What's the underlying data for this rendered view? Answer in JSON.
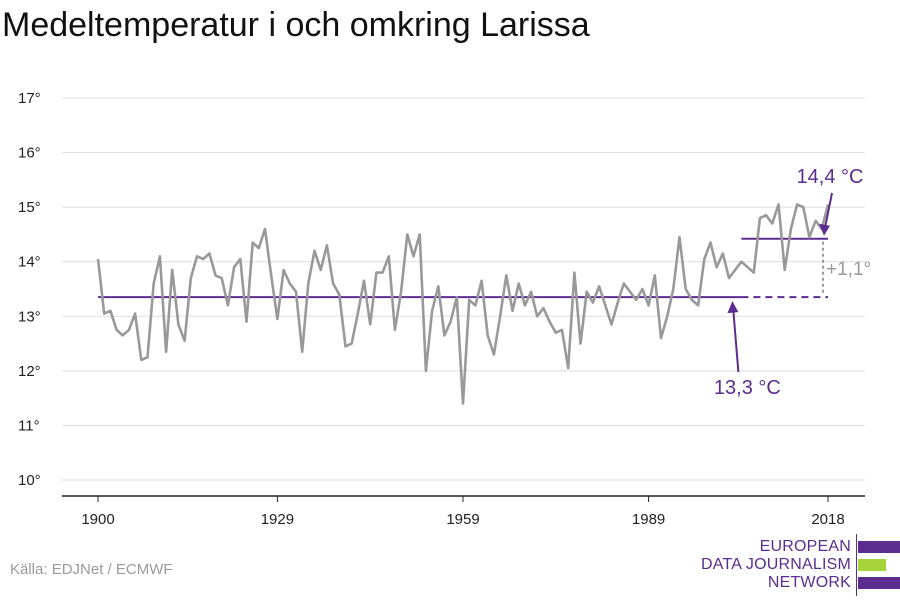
{
  "title": "Medeltemperatur i och omkring Larissa",
  "source": "Källa: EDJNet / ECMWF",
  "logo": {
    "lines": [
      "EUROPEAN",
      "DATA JOURNALISM",
      "NETWORK"
    ],
    "colors": {
      "purple": "#5b2d8e",
      "green": "#a6d33a"
    }
  },
  "colors": {
    "series": "#999999",
    "reference": "#5b2d8e",
    "annotation_purple": "#5b2d8e",
    "diff_text": "#999999",
    "grid": "#dddddd",
    "axis": "#222222"
  },
  "chart_data": {
    "type": "line",
    "title": "Medeltemperatur i och omkring Larissa",
    "xlabel": "",
    "ylabel": "",
    "xlim": [
      1900,
      2018
    ],
    "ylim": [
      10,
      17
    ],
    "grid": true,
    "x_ticks": [
      1900,
      1929,
      1959,
      1989,
      2018
    ],
    "x_tick_labels": [
      "1900",
      "1929",
      "1959",
      "1989",
      "2018"
    ],
    "y_ticks": [
      10,
      11,
      12,
      13,
      14,
      15,
      16,
      17
    ],
    "y_tick_labels": [
      "10°",
      "11°",
      "12°",
      "13°",
      "14°",
      "15°",
      "16°",
      "17°"
    ],
    "series": [
      {
        "x": [
          1900,
          1901,
          1902,
          1903,
          1904,
          1905,
          1906,
          1907,
          1908,
          1909,
          1910,
          1911,
          1912,
          1913,
          1914,
          1915,
          1916,
          1917,
          1918,
          1919,
          1920,
          1921,
          1922,
          1923,
          1924,
          1925,
          1926,
          1927,
          1928,
          1929,
          1930,
          1931,
          1932,
          1933,
          1934,
          1935,
          1936,
          1937,
          1938,
          1939,
          1940,
          1941,
          1942,
          1943,
          1944,
          1945,
          1946,
          1947,
          1948,
          1949,
          1950,
          1951,
          1952,
          1953,
          1954,
          1955,
          1956,
          1957,
          1958,
          1959,
          1960,
          1961,
          1962,
          1963,
          1964,
          1965,
          1966,
          1967,
          1968,
          1969,
          1970,
          1971,
          1972,
          1973,
          1974,
          1975,
          1976,
          1977,
          1978,
          1979,
          1980,
          1981,
          1982,
          1983,
          1984,
          1985,
          1986,
          1987,
          1988,
          1989,
          1990,
          1991,
          1992,
          1993,
          1994,
          1995,
          1996,
          1997,
          1998,
          1999,
          2000,
          2001,
          2002,
          2003,
          2004,
          2005,
          2006,
          2007,
          2008,
          2009,
          2010,
          2011,
          2012,
          2013,
          2014,
          2015,
          2016,
          2017,
          2018
        ],
        "values": [
          14.05,
          13.05,
          13.1,
          12.75,
          12.65,
          12.75,
          13.05,
          12.2,
          12.25,
          13.6,
          14.1,
          12.35,
          13.85,
          12.85,
          12.55,
          13.7,
          14.1,
          14.05,
          14.15,
          13.75,
          13.7,
          13.2,
          13.9,
          14.05,
          12.9,
          14.35,
          14.25,
          14.6,
          13.75,
          12.95,
          13.85,
          13.6,
          13.45,
          12.35,
          13.6,
          14.2,
          13.85,
          14.3,
          13.6,
          13.4,
          12.45,
          12.5,
          13.05,
          13.65,
          12.85,
          13.8,
          13.8,
          14.1,
          12.75,
          13.45,
          14.5,
          14.1,
          14.5,
          12.0,
          13.1,
          13.55,
          12.65,
          12.9,
          13.35,
          11.4,
          13.3,
          13.2,
          13.65,
          12.65,
          12.3,
          13.0,
          13.75,
          13.1,
          13.6,
          13.2,
          13.45,
          13.0,
          13.15,
          12.9,
          12.7,
          12.75,
          12.05,
          13.8,
          12.5,
          13.45,
          13.25,
          13.55,
          13.2,
          12.85,
          13.25,
          13.6,
          13.45,
          13.3,
          13.5,
          13.2,
          13.75,
          12.6,
          13.0,
          13.5,
          14.45,
          13.5,
          13.3,
          13.2,
          14.05,
          14.35,
          13.9,
          14.15,
          13.7,
          13.85,
          14.0,
          13.9,
          13.8,
          14.8,
          14.85,
          14.7,
          15.05,
          13.85,
          14.6,
          15.05,
          15.0,
          14.45,
          14.75,
          14.6,
          15.05
        ]
      }
    ],
    "reference_lines": [
      {
        "value": 13.35,
        "x_start": 1900,
        "x_end": 2004,
        "style": "solid"
      },
      {
        "value": 13.35,
        "x_start": 2004,
        "x_end": 2018,
        "style": "dashed"
      },
      {
        "value": 14.42,
        "x_start": 2004,
        "x_end": 2018,
        "style": "solid"
      }
    ],
    "annotations": [
      {
        "text": "14,4 °C",
        "x": 2018,
        "y": 14.42
      },
      {
        "text": "13,3 °C",
        "x": 2004,
        "y": 13.35
      },
      {
        "text": "+1,1°",
        "x": 2018,
        "y": 13.9
      }
    ]
  }
}
